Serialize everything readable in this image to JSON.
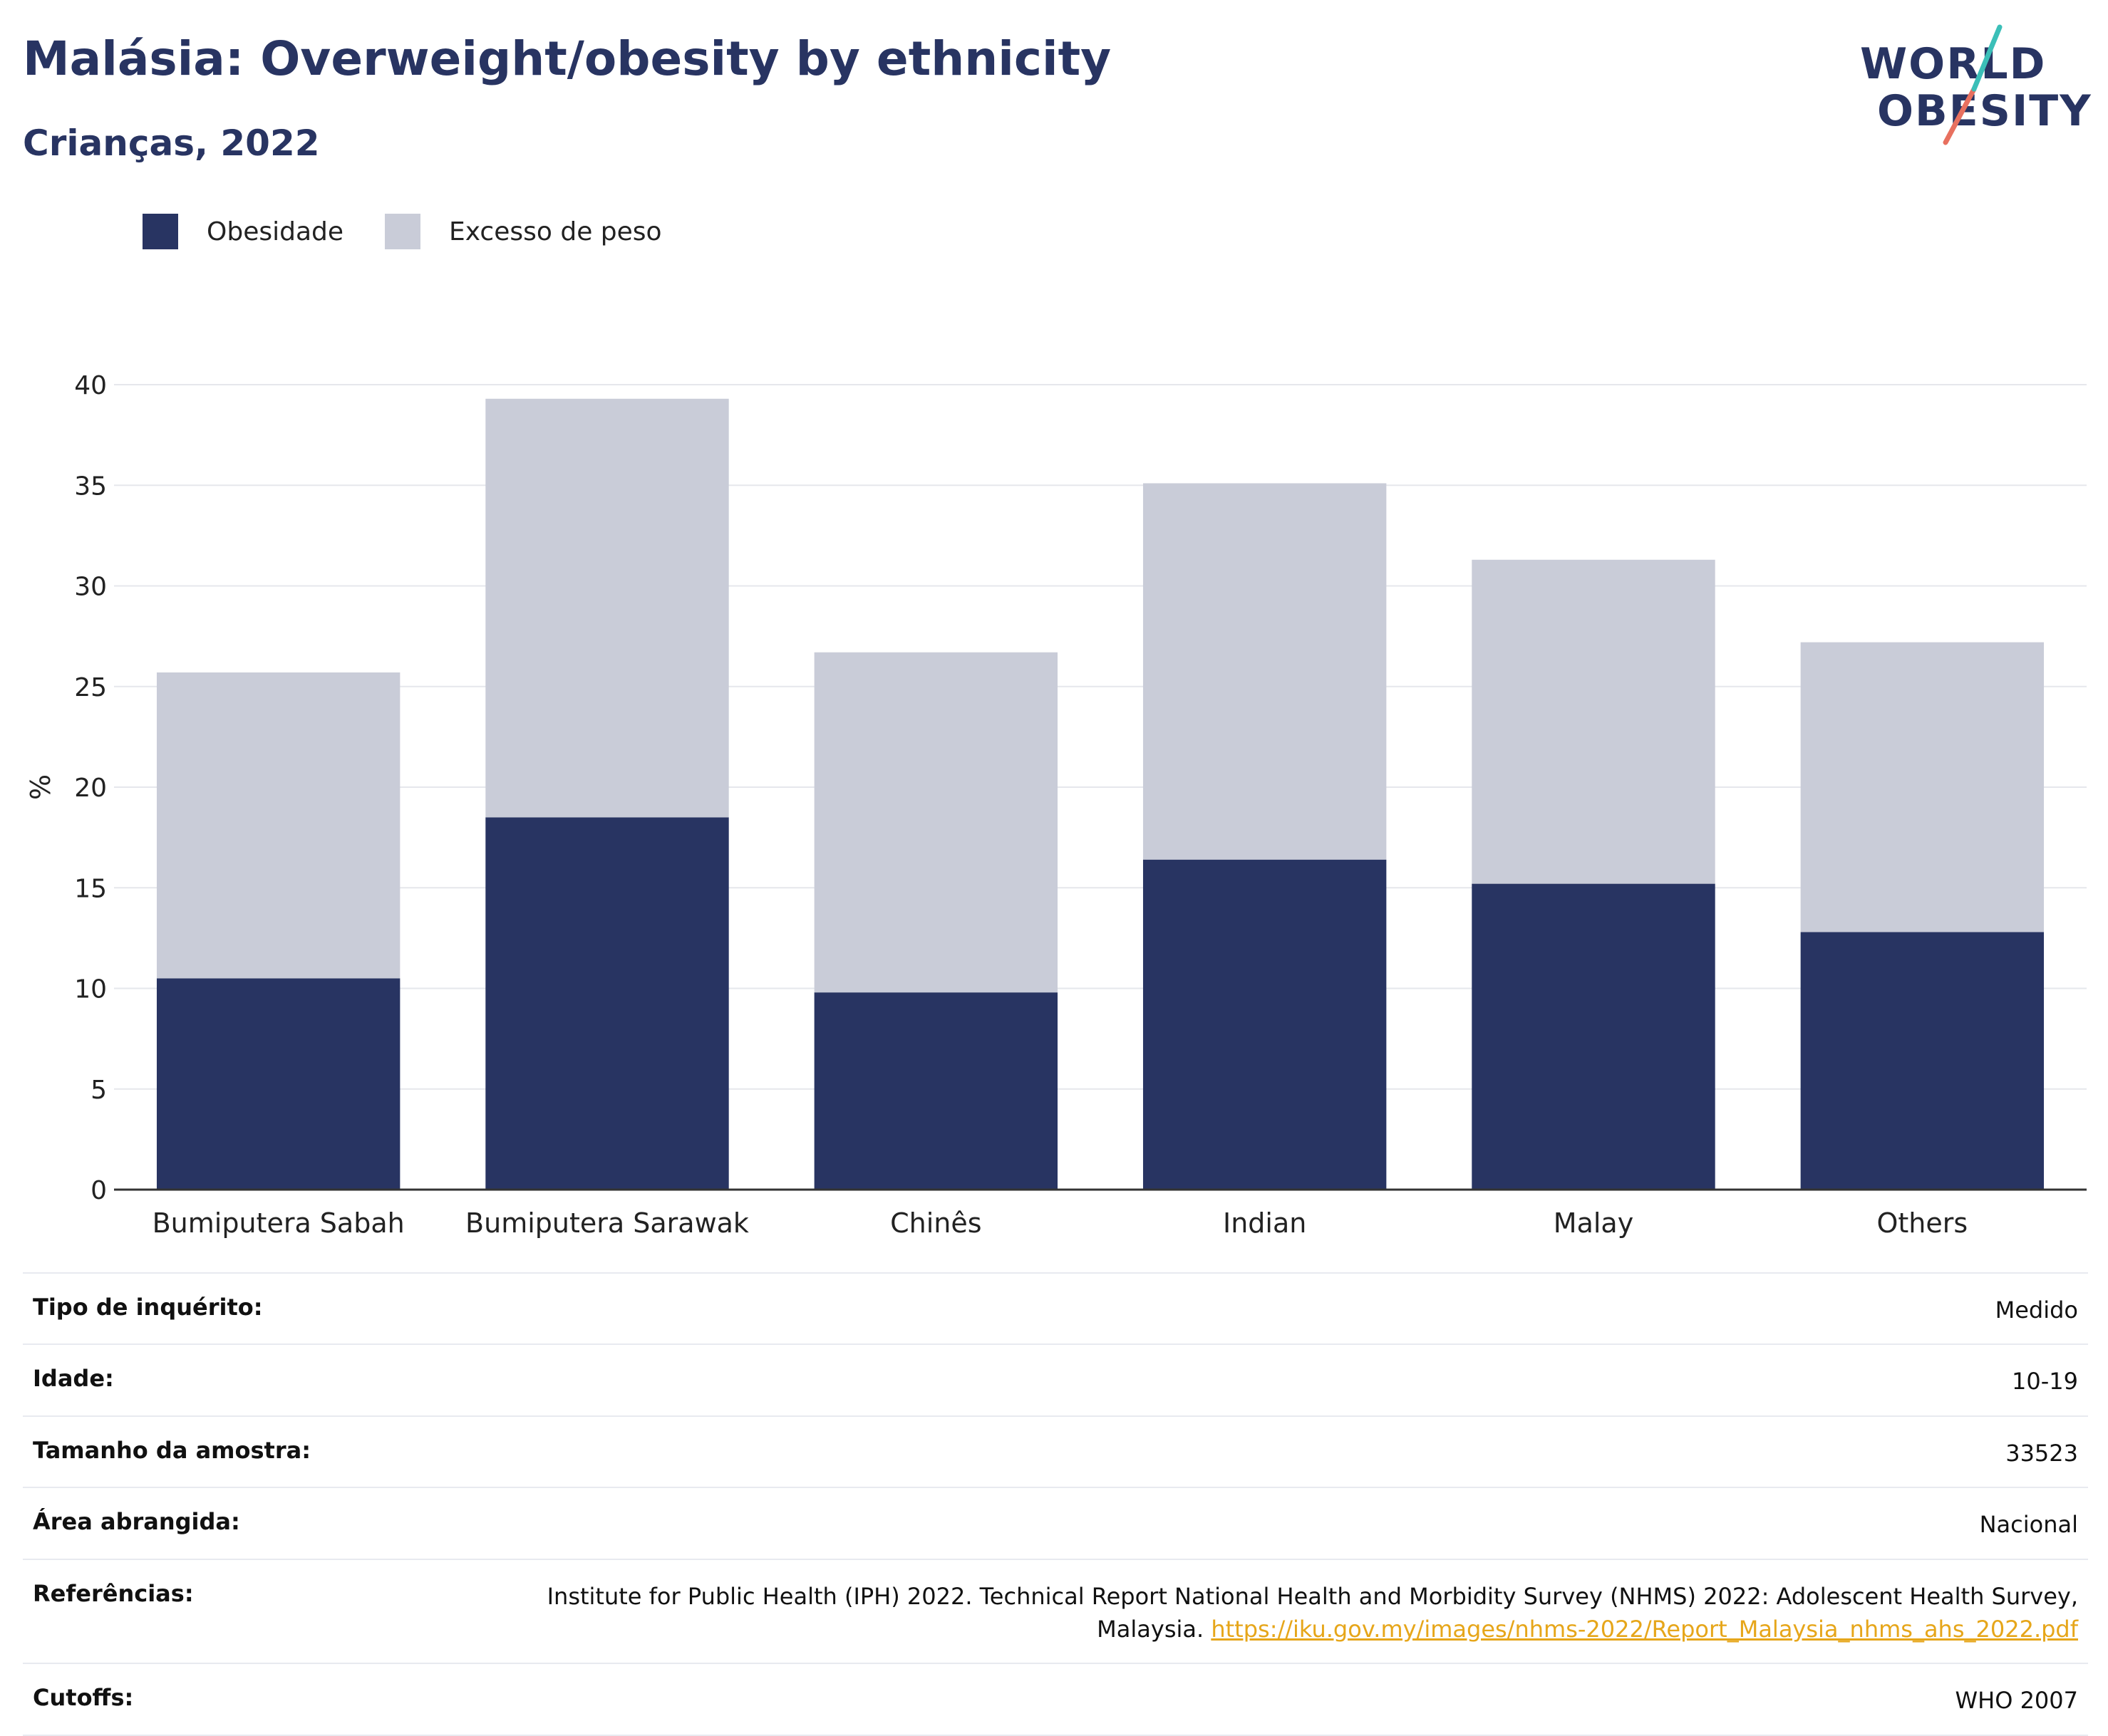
{
  "header": {
    "title": "Malásia: Overweight/obesity by ethnicity",
    "subtitle": "Crianças, 2022"
  },
  "logo": {
    "line1": "WORLD",
    "line2": "OBESITY"
  },
  "legend": {
    "items": [
      {
        "label": "Obesidade",
        "color": "#283462"
      },
      {
        "label": "Excesso de peso",
        "color": "#c9ccd8"
      }
    ]
  },
  "chart_data": {
    "type": "bar",
    "stacked": true,
    "categories": [
      "Bumiputera Sabah",
      "Bumiputera Sarawak",
      "Chinês",
      "Indian",
      "Malay",
      "Others"
    ],
    "series": [
      {
        "name": "Obesidade",
        "color": "#283462",
        "values": [
          10.5,
          18.5,
          9.8,
          16.4,
          15.2,
          12.8
        ]
      },
      {
        "name": "Excesso de peso",
        "color": "#c9ccd8",
        "values": [
          15.2,
          20.8,
          16.9,
          18.7,
          16.1,
          14.4
        ]
      }
    ],
    "totals": [
      25.7,
      39.3,
      26.7,
      35.1,
      31.3,
      27.2
    ],
    "ylabel": "%",
    "xlabel": "",
    "ylim": [
      0,
      40
    ],
    "yticks": [
      0,
      5,
      10,
      15,
      20,
      25,
      30,
      35,
      40
    ],
    "grid": true,
    "legend_position": "top-left"
  },
  "info": {
    "rows": [
      {
        "label": "Tipo de inquérito:",
        "value": "Medido"
      },
      {
        "label": "Idade:",
        "value": "10-19"
      },
      {
        "label": "Tamanho da amostra:",
        "value": "33523"
      },
      {
        "label": "Área abrangida:",
        "value": "Nacional"
      }
    ],
    "references": {
      "label": "Referências:",
      "text": "Institute for Public Health (IPH) 2022. Technical Report National Health and Morbidity Survey (NHMS) 2022: Adolescent Health Survey, Malaysia.",
      "link": "https://iku.gov.my/images/nhms-2022/Report_Malaysia_nhms_ahs_2022.pdf"
    },
    "cutoffs": {
      "label": "Cutoffs:",
      "value": "WHO 2007"
    }
  }
}
